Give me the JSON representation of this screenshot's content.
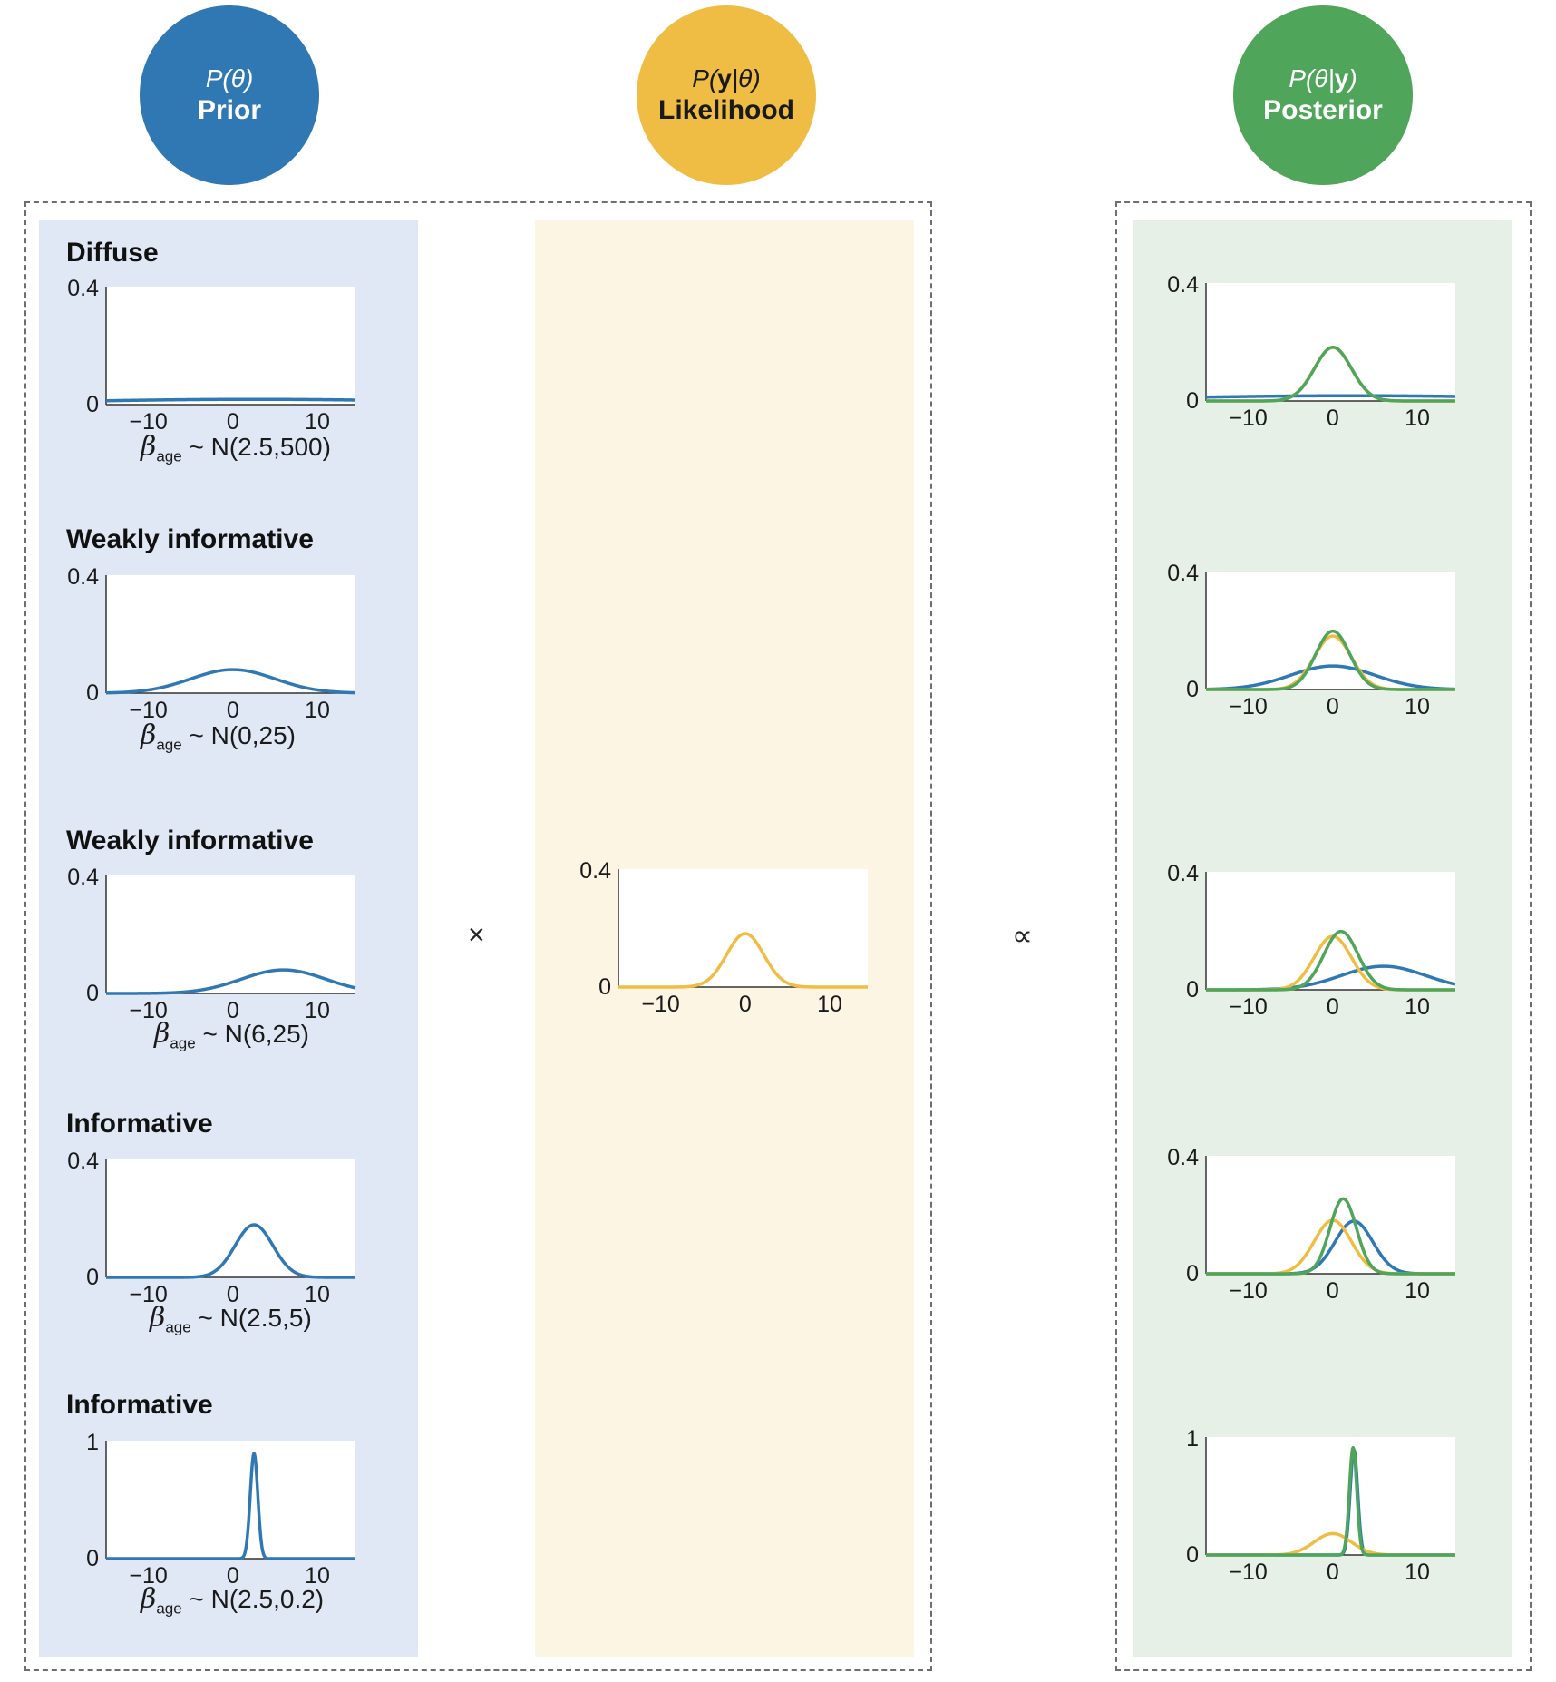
{
  "header": {
    "prior": {
      "formula_pre": "P(",
      "formula_var": "θ",
      "formula_post": ")",
      "label": "Prior"
    },
    "likelihood": {
      "formula_pre": "P(",
      "formula_var": "y",
      "formula_mid": "|",
      "formula_var2": "θ",
      "formula_post": ")",
      "label": "Likelihood"
    },
    "posterior": {
      "formula_pre": "P(",
      "formula_var": "θ",
      "formula_mid": "|",
      "formula_var2": "y",
      "formula_post": ")",
      "label": "Posterior"
    }
  },
  "operators": {
    "times": "×",
    "proportional": "∝"
  },
  "colors": {
    "prior": "#2f78b4",
    "likelihood": "#f0bd44",
    "posterior": "#4fa559"
  },
  "x_ticks": [
    "−10",
    "0",
    "10"
  ],
  "likelihood_chart": {
    "mean": 0,
    "sd": 2.2,
    "ymax_label": "0.4",
    "ymin_label": "0"
  },
  "priors": [
    {
      "title": "Diffuse",
      "beta": "β",
      "sub": "age",
      "dist": "~ N(2.5,500)",
      "mean": 2.5,
      "var": 500,
      "ymax_label": "0.4",
      "ymin_label": "0",
      "ymax": 0.4
    },
    {
      "title": "Weakly informative",
      "beta": "β",
      "sub": "age",
      "dist": "~ N(0,25)",
      "mean": 0,
      "var": 25,
      "ymax_label": "0.4",
      "ymin_label": "0",
      "ymax": 0.4
    },
    {
      "title": "Weakly informative",
      "beta": "β",
      "sub": "age",
      "dist": "~ N(6,25)",
      "mean": 6,
      "var": 25,
      "ymax_label": "0.4",
      "ymin_label": "0",
      "ymax": 0.4
    },
    {
      "title": "Informative",
      "beta": "β",
      "sub": "age",
      "dist": "~ N(2.5,5)",
      "mean": 2.5,
      "var": 5,
      "ymax_label": "0.4",
      "ymin_label": "0",
      "ymax": 0.4
    },
    {
      "title": "Informative",
      "beta": "β",
      "sub": "age",
      "dist": "~ N(2.5,0.2)",
      "mean": 2.5,
      "var": 0.2,
      "ymax_label": "1",
      "ymin_label": "0",
      "ymax": 1
    }
  ]
}
